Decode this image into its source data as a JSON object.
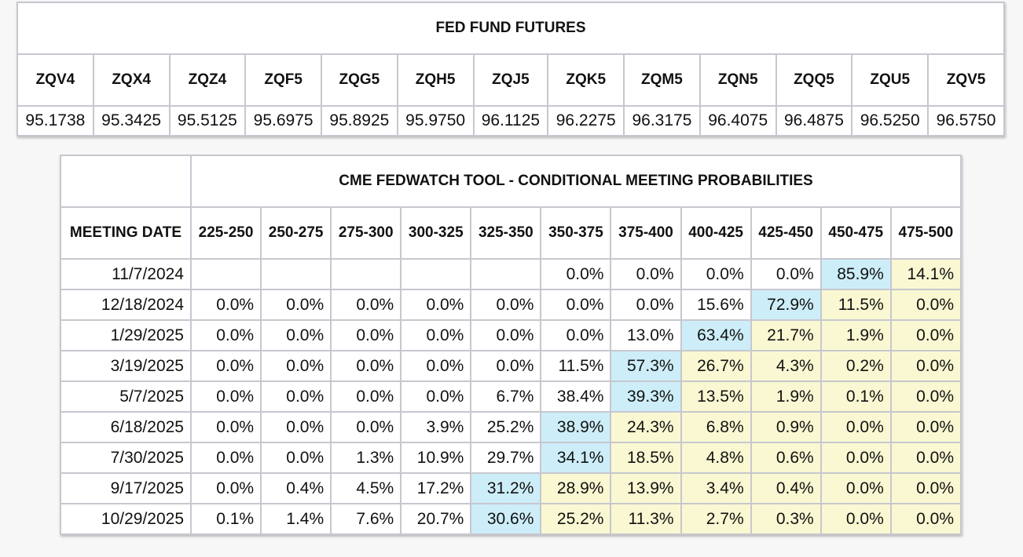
{
  "futures": {
    "title": "FED FUND FUTURES",
    "contracts": [
      "ZQV4",
      "ZQX4",
      "ZQZ4",
      "ZQF5",
      "ZQG5",
      "ZQH5",
      "ZQJ5",
      "ZQK5",
      "ZQM5",
      "ZQN5",
      "ZQQ5",
      "ZQU5",
      "ZQV5"
    ],
    "prices": [
      "95.1738",
      "95.3425",
      "95.5125",
      "95.6975",
      "95.8925",
      "95.9750",
      "96.1125",
      "96.2275",
      "96.3175",
      "96.4075",
      "96.4875",
      "96.5250",
      "96.5750"
    ]
  },
  "fedwatch": {
    "title": "CME FEDWATCH TOOL - CONDITIONAL MEETING PROBABILITIES",
    "date_header": "MEETING DATE",
    "ranges": [
      "225-250",
      "250-275",
      "275-300",
      "300-325",
      "325-350",
      "350-375",
      "375-400",
      "400-425",
      "425-450",
      "450-475",
      "475-500"
    ],
    "colors": {
      "highest": "#cdeef8",
      "above_highest": "#f9f8d2"
    },
    "rows": [
      {
        "date": "11/7/2024",
        "values": [
          "",
          "",
          "",
          "",
          "",
          "0.0%",
          "0.0%",
          "0.0%",
          "0.0%",
          "85.9%",
          "14.1%"
        ],
        "max_index": 9
      },
      {
        "date": "12/18/2024",
        "values": [
          "0.0%",
          "0.0%",
          "0.0%",
          "0.0%",
          "0.0%",
          "0.0%",
          "0.0%",
          "15.6%",
          "72.9%",
          "11.5%",
          "0.0%"
        ],
        "max_index": 8
      },
      {
        "date": "1/29/2025",
        "values": [
          "0.0%",
          "0.0%",
          "0.0%",
          "0.0%",
          "0.0%",
          "0.0%",
          "13.0%",
          "63.4%",
          "21.7%",
          "1.9%",
          "0.0%"
        ],
        "max_index": 7
      },
      {
        "date": "3/19/2025",
        "values": [
          "0.0%",
          "0.0%",
          "0.0%",
          "0.0%",
          "0.0%",
          "11.5%",
          "57.3%",
          "26.7%",
          "4.3%",
          "0.2%",
          "0.0%"
        ],
        "max_index": 6
      },
      {
        "date": "5/7/2025",
        "values": [
          "0.0%",
          "0.0%",
          "0.0%",
          "0.0%",
          "6.7%",
          "38.4%",
          "39.3%",
          "13.5%",
          "1.9%",
          "0.1%",
          "0.0%"
        ],
        "max_index": 6
      },
      {
        "date": "6/18/2025",
        "values": [
          "0.0%",
          "0.0%",
          "0.0%",
          "3.9%",
          "25.2%",
          "38.9%",
          "24.3%",
          "6.8%",
          "0.9%",
          "0.0%",
          "0.0%"
        ],
        "max_index": 5
      },
      {
        "date": "7/30/2025",
        "values": [
          "0.0%",
          "0.0%",
          "1.3%",
          "10.9%",
          "29.7%",
          "34.1%",
          "18.5%",
          "4.8%",
          "0.6%",
          "0.0%",
          "0.0%"
        ],
        "max_index": 5
      },
      {
        "date": "9/17/2025",
        "values": [
          "0.0%",
          "0.4%",
          "4.5%",
          "17.2%",
          "31.2%",
          "28.9%",
          "13.9%",
          "3.4%",
          "0.4%",
          "0.0%",
          "0.0%"
        ],
        "max_index": 4
      },
      {
        "date": "10/29/2025",
        "values": [
          "0.1%",
          "1.4%",
          "7.6%",
          "20.7%",
          "30.6%",
          "25.2%",
          "11.3%",
          "2.7%",
          "0.3%",
          "0.0%",
          "0.0%"
        ],
        "max_index": 4
      }
    ]
  }
}
